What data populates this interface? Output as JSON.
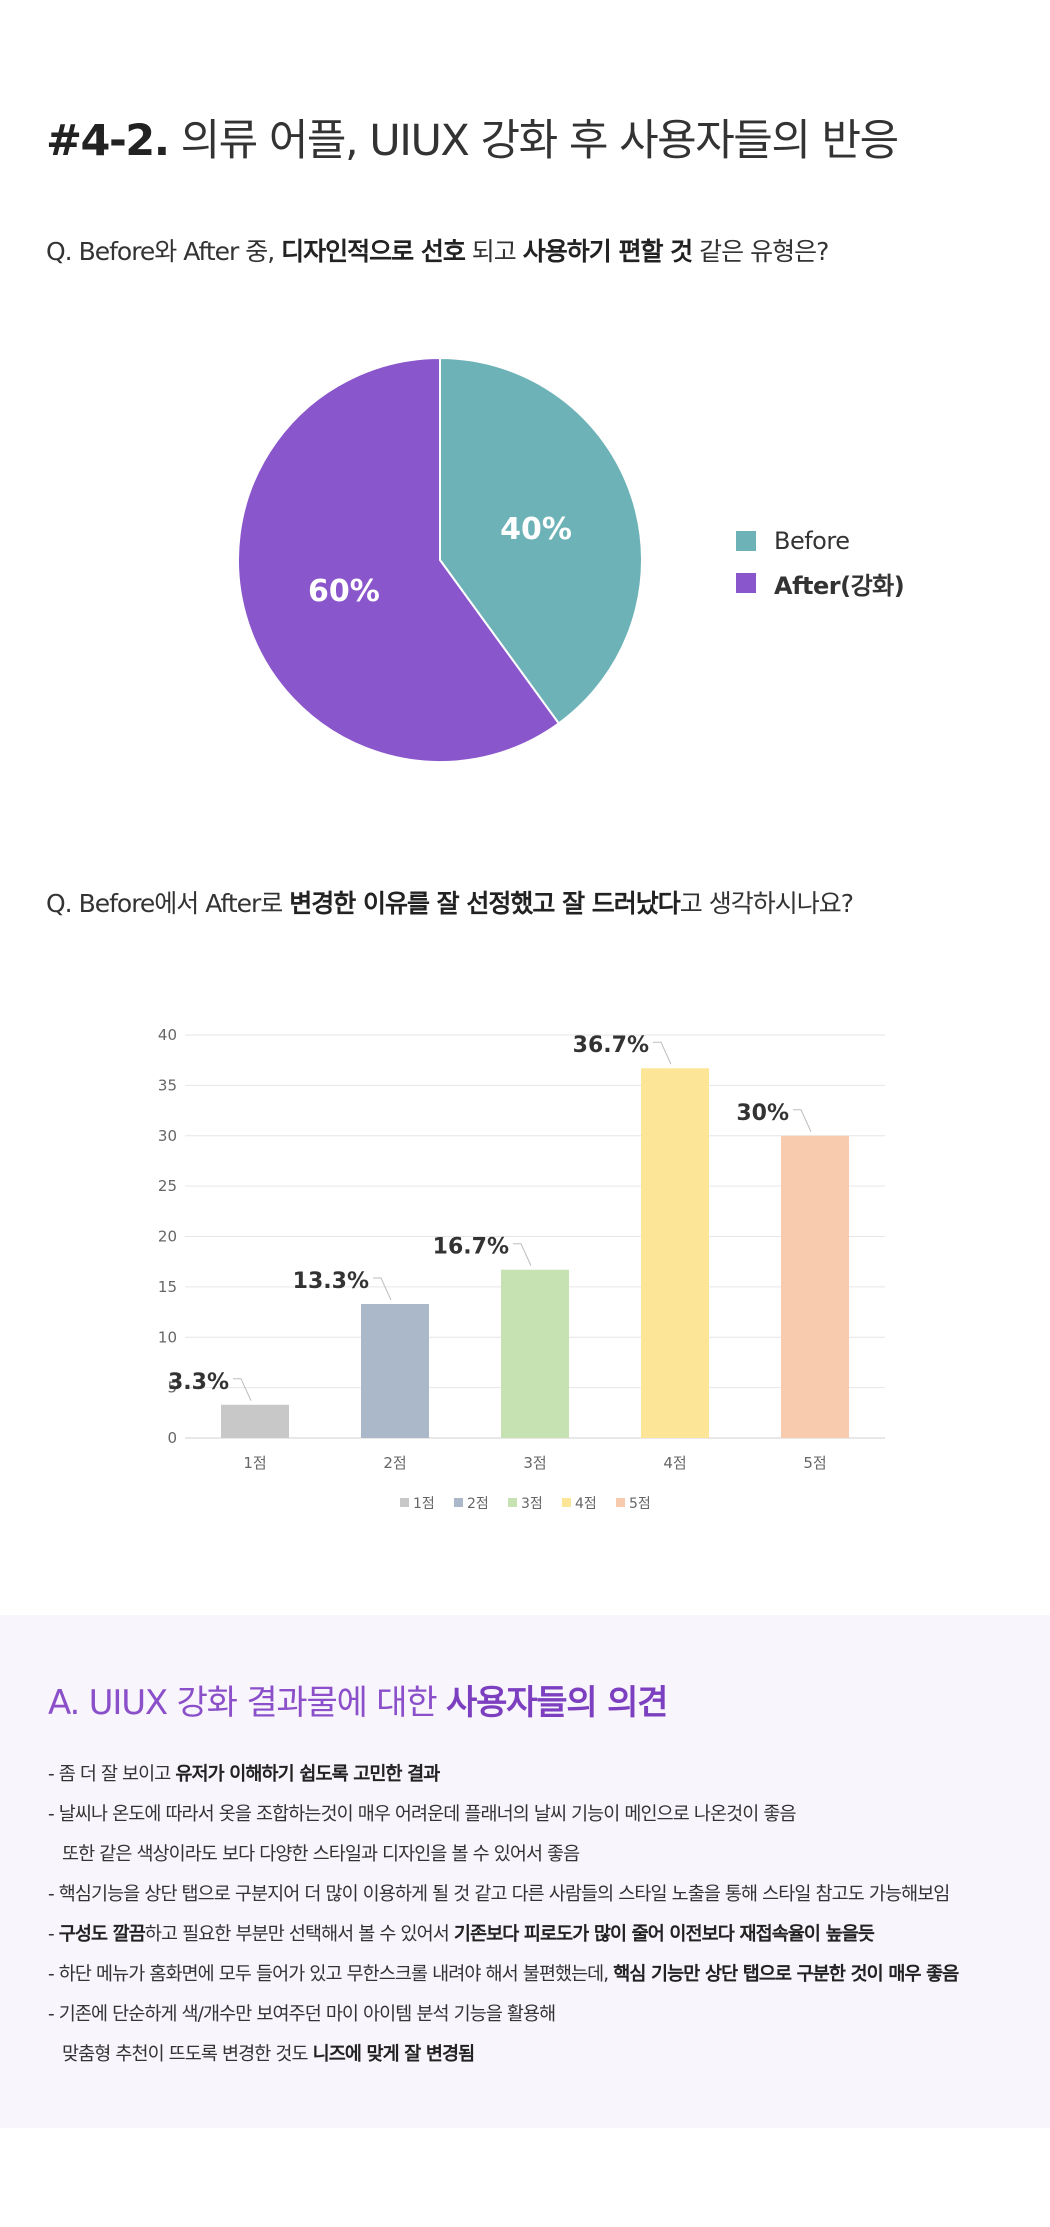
{
  "heading": {
    "number": "#4-2.",
    "text": "의류 어플, UIUX 강화 후 사용자들의 반응"
  },
  "questions": {
    "q1": {
      "parts": [
        "Q. Before와 After 중, ",
        "디자인적으로 선호",
        " 되고 ",
        "사용하기 편할 것",
        " 같은 유형은?"
      ]
    },
    "q2": {
      "parts": [
        "Q. Before에서 After로 ",
        "변경한 이유를 잘 선정했고 잘 드러났다",
        "고 생각하시나요?"
      ]
    }
  },
  "colors": {
    "before": "#6db2b7",
    "after": "#8a56cc",
    "bars": [
      "#c8c8c8",
      "#abb8ca",
      "#c6e1b2",
      "#fce597",
      "#f8cbae"
    ]
  },
  "chart_data": [
    {
      "type": "pie",
      "series": [
        {
          "name": "Before",
          "value": 40,
          "label": "40%"
        },
        {
          "name": "After(강화)",
          "value": 60,
          "label": "60%"
        }
      ],
      "legend": "right"
    },
    {
      "type": "bar",
      "categories": [
        "1점",
        "2점",
        "3점",
        "4점",
        "5점"
      ],
      "values": [
        3.3,
        13.3,
        16.7,
        36.7,
        30
      ],
      "value_labels": [
        "3.3%",
        "13.3%",
        "16.7%",
        "36.7%",
        "30%"
      ],
      "ylim": [
        0,
        40
      ],
      "yticks": [
        0,
        5,
        10,
        15,
        20,
        25,
        30,
        35,
        40
      ],
      "grid": true,
      "legend": "bottom"
    }
  ],
  "opinions": {
    "title_a": "A. UIUX 강화 결과물에 대한 ",
    "title_b": "사용자들의 의견",
    "lines": [
      {
        "indent": false,
        "parts": [
          {
            "t": "- 좀 더 잘 보이고 "
          },
          {
            "t": "유저가 이해하기 쉽도록 고민한 결과",
            "b": true
          }
        ]
      },
      {
        "indent": false,
        "parts": [
          {
            "t": "- 날씨나 온도에 따라서 옷을 조합하는것이 매우 어려운데 플래너의 날씨 기능이 메인으로 나온것이 좋음"
          }
        ]
      },
      {
        "indent": true,
        "parts": [
          {
            "t": "또한 같은 색상이라도 보다 다양한 스타일과 디자인을 볼 수 있어서 좋음"
          }
        ]
      },
      {
        "indent": false,
        "parts": [
          {
            "t": "- 핵심기능을 상단 탭으로 구분지어 더 많이 이용하게 될 것 같고 다른 사람들의 스타일 노출을 통해 스타일 참고도 가능해보임"
          }
        ]
      },
      {
        "indent": false,
        "parts": [
          {
            "t": "- "
          },
          {
            "t": "구성도 깔끔",
            "b": true
          },
          {
            "t": "하고 필요한 부분만 선택해서 볼 수 있어서 "
          },
          {
            "t": "기존보다 피로도가 많이 줄어 이전보다 재접속율이 높을듯",
            "b": true
          }
        ]
      },
      {
        "indent": false,
        "parts": [
          {
            "t": "- 하단 메뉴가 홈화면에 모두 들어가 있고 무한스크롤 내려야 해서 불편했는데, "
          },
          {
            "t": "핵심 기능만 상단 탭으로 구분한 것이 매우 좋음",
            "b": true
          }
        ]
      },
      {
        "indent": false,
        "parts": [
          {
            "t": "- 기존에 단순하게 색/개수만 보여주던 마이 아이템 분석 기능을 활용해"
          }
        ]
      },
      {
        "indent": true,
        "parts": [
          {
            "t": "맞춤형 추천이 뜨도록 변경한 것도 "
          },
          {
            "t": "니즈에 맞게 잘 변경됨",
            "b": true
          }
        ]
      }
    ]
  }
}
